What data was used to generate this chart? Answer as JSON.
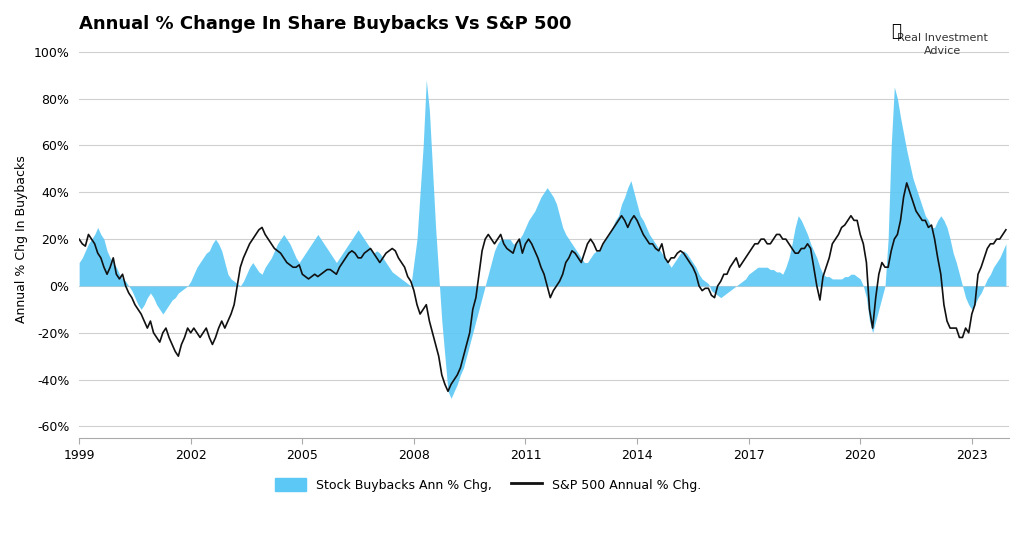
{
  "title": "Annual % Change In Share Buybacks Vs S&P 500",
  "ylabel": "Annual % Chg In Buybacks",
  "ylim": [
    -65,
    105
  ],
  "ytick_values": [
    -60,
    -40,
    -20,
    0,
    20,
    40,
    60,
    80,
    100
  ],
  "background_color": "#ffffff",
  "grid_color": "#d0d0d0",
  "buyback_color": "#5bc8f5",
  "sp500_color": "#111111",
  "legend_buyback": "Stock Buybacks Ann % Chg,",
  "legend_sp500": "S&P 500 Annual % Chg.",
  "xtick_labels": [
    "1999",
    "2002",
    "2005",
    "2008",
    "2011",
    "2014",
    "2017",
    "2020",
    "2023"
  ],
  "xtick_values": [
    1999,
    2002,
    2005,
    2008,
    2011,
    2014,
    2017,
    2020,
    2023
  ],
  "xmin": 1999.0,
  "xmax": 2024.0,
  "title_fontsize": 13,
  "tick_fontsize": 9,
  "label_fontsize": 9
}
